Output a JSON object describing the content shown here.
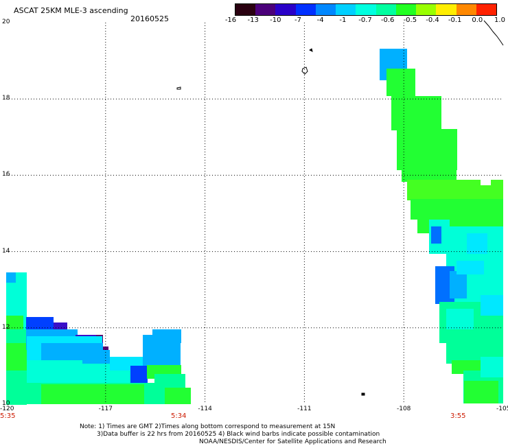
{
  "header": {
    "title": "ASCAT 25KM MLE-3 ascending",
    "date": "20160525"
  },
  "colorbar": {
    "labels": [
      "-16",
      "-13",
      "-10",
      "-7",
      "-4",
      "-1",
      "-0.7",
      "-0.6",
      "-0.5",
      "-0.4",
      "-0.1",
      "0.0",
      "1.0"
    ],
    "colors": [
      "#2a0010",
      "#4b007a",
      "#2a00c8",
      "#0030ff",
      "#0088ff",
      "#00d0ff",
      "#00ffe0",
      "#00ffa0",
      "#22ff22",
      "#99ff00",
      "#ffee00",
      "#ff8800",
      "#ff2200"
    ]
  },
  "map": {
    "lon_ticks": [
      "-120",
      "-117",
      "-114",
      "-111",
      "-108",
      "-105"
    ],
    "lat_ticks": [
      "20",
      "18",
      "16",
      "14",
      "12",
      "10"
    ],
    "lon_range": [
      -120,
      -105
    ],
    "lat_range": [
      10,
      20
    ],
    "grid": true
  },
  "times": [
    "5:35",
    "5:34",
    "3:55"
  ],
  "notes": {
    "line1": "Note: 1) Times are GMT 2)Times along bottom correspond to measurement at 15N",
    "line2": "3)Data buffer is 22 hrs from 20160525 4) Black wind barbs indicate possible contamination",
    "line3": "NOAA/NESDIS/Center for Satellite Applications and Research"
  }
}
